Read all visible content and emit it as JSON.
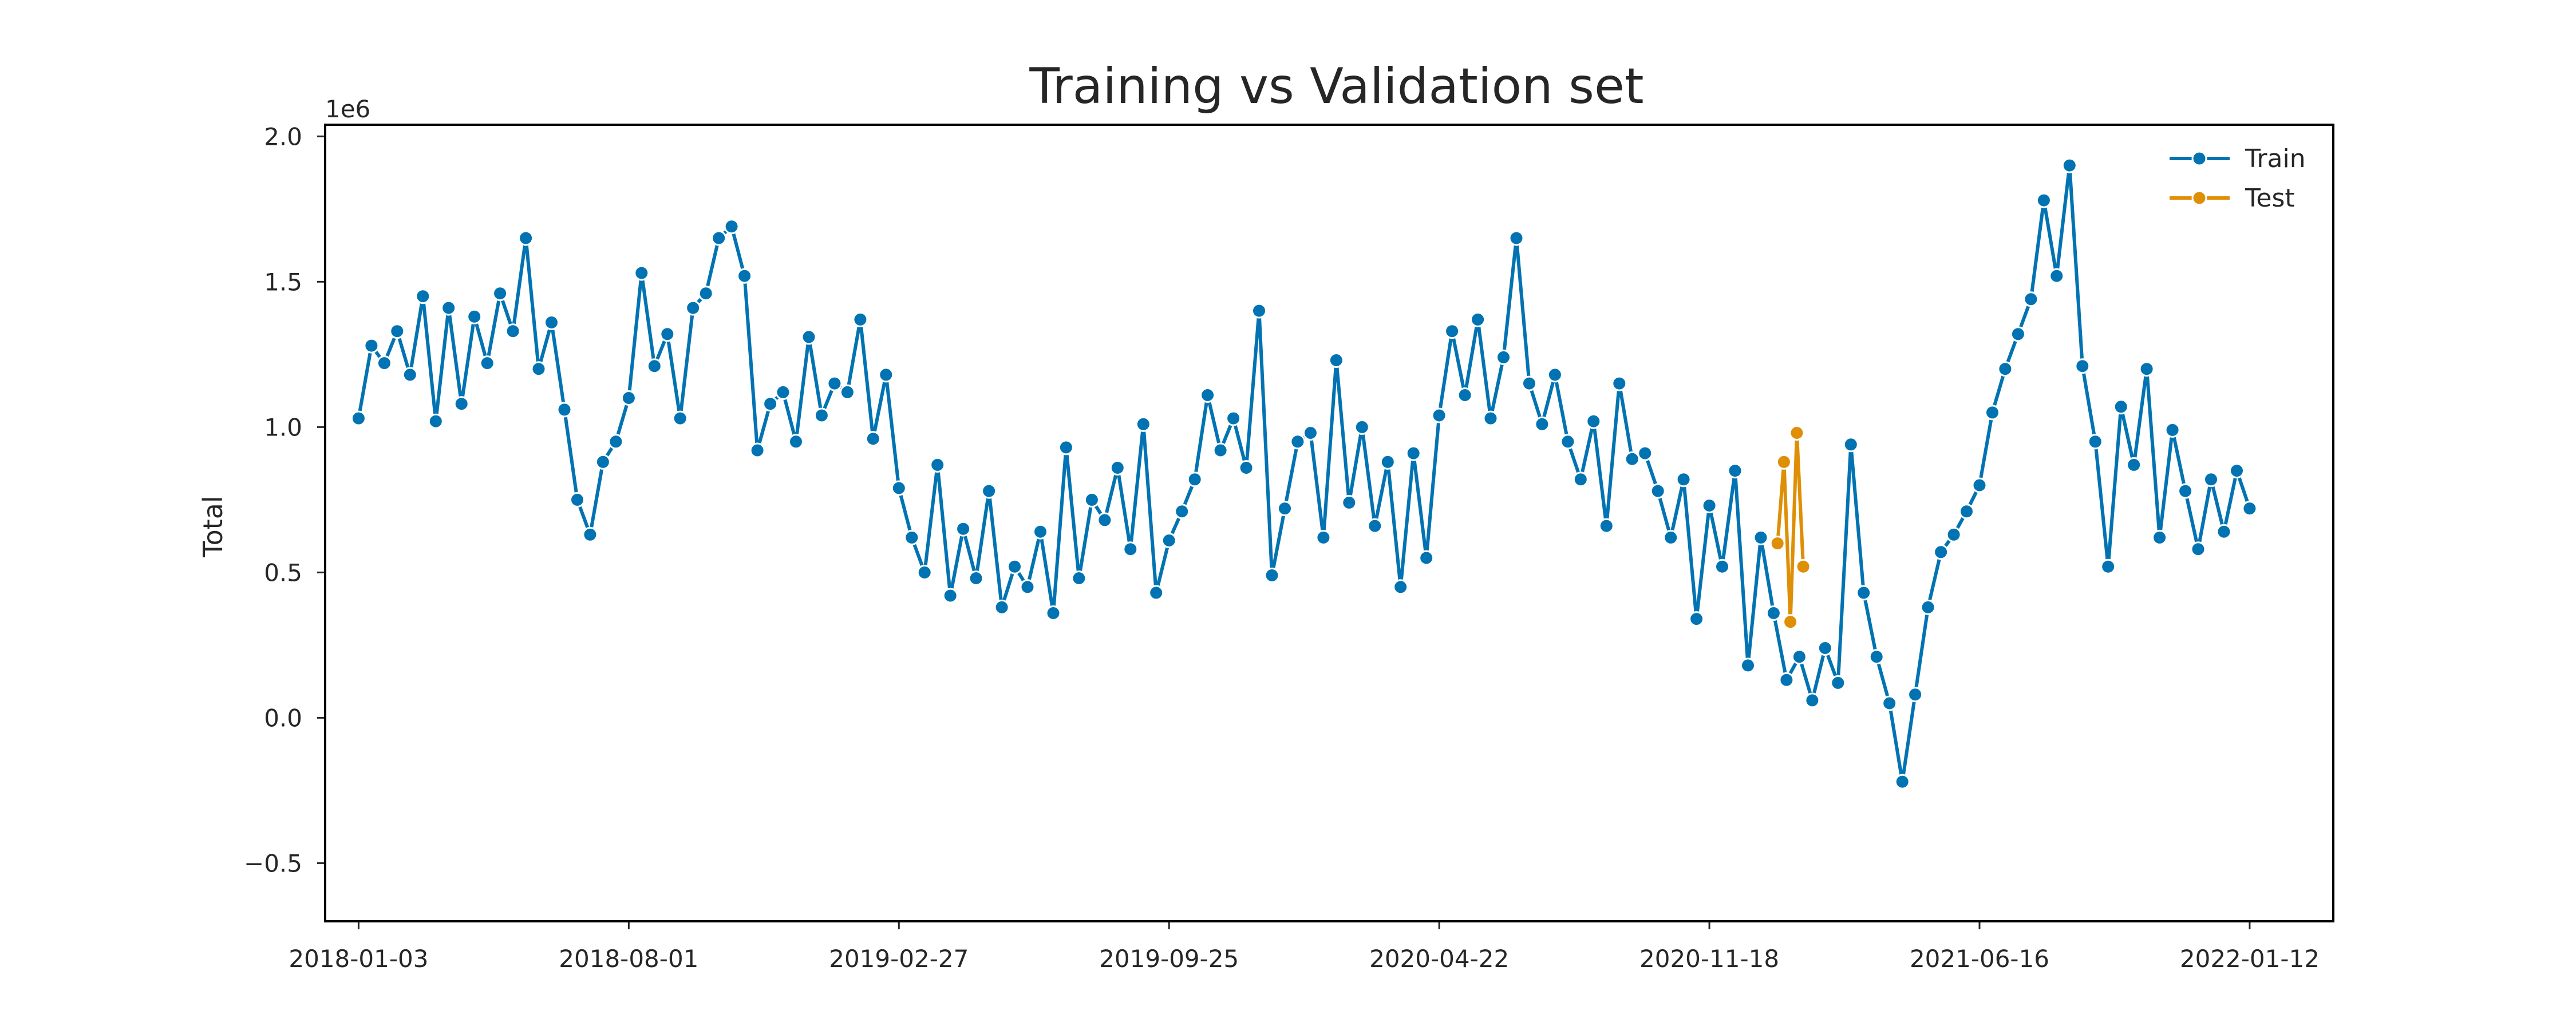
{
  "chart_data": {
    "type": "line",
    "title": "Training vs Validation set",
    "xlabel": "",
    "ylabel": "Total",
    "y_offset_text": "1e6",
    "ylim": [
      -0.7,
      2.04
    ],
    "y_ticks": [
      {
        "value": -0.5,
        "label": "−0.5"
      },
      {
        "value": 0.0,
        "label": "0.0"
      },
      {
        "value": 0.5,
        "label": "0.5"
      },
      {
        "value": 1.0,
        "label": "1.0"
      },
      {
        "value": 1.5,
        "label": "1.5"
      },
      {
        "value": 2.0,
        "label": "2.0"
      }
    ],
    "x_ticks": [
      "2018-01-03",
      "2018-08-01",
      "2019-02-27",
      "2019-09-25",
      "2020-04-22",
      "2020-11-18",
      "2021-06-16",
      "2022-01-12"
    ],
    "xlim": [
      "2017-12-08",
      "2022-03-18"
    ],
    "grid": false,
    "legend_position": "top-right",
    "series": [
      {
        "name": "Train",
        "color": "#0173b2",
        "points": [
          [
            "2018-01-03",
            1.03
          ],
          [
            "2018-01-13",
            1.28
          ],
          [
            "2018-01-23",
            1.22
          ],
          [
            "2018-02-02",
            1.33
          ],
          [
            "2018-02-12",
            1.18
          ],
          [
            "2018-02-22",
            1.45
          ],
          [
            "2018-03-04",
            1.02
          ],
          [
            "2018-03-14",
            1.41
          ],
          [
            "2018-03-24",
            1.08
          ],
          [
            "2018-04-03",
            1.38
          ],
          [
            "2018-04-13",
            1.22
          ],
          [
            "2018-04-23",
            1.46
          ],
          [
            "2018-05-03",
            1.33
          ],
          [
            "2018-05-13",
            1.65
          ],
          [
            "2018-05-23",
            1.2
          ],
          [
            "2018-06-02",
            1.36
          ],
          [
            "2018-06-12",
            1.06
          ],
          [
            "2018-06-22",
            0.75
          ],
          [
            "2018-07-02",
            0.63
          ],
          [
            "2018-07-12",
            0.88
          ],
          [
            "2018-07-22",
            0.95
          ],
          [
            "2018-08-01",
            1.1
          ],
          [
            "2018-08-11",
            1.53
          ],
          [
            "2018-08-21",
            1.21
          ],
          [
            "2018-08-31",
            1.32
          ],
          [
            "2018-09-10",
            1.03
          ],
          [
            "2018-09-20",
            1.41
          ],
          [
            "2018-09-30",
            1.46
          ],
          [
            "2018-10-10",
            1.65
          ],
          [
            "2018-10-20",
            1.69
          ],
          [
            "2018-10-30",
            1.52
          ],
          [
            "2018-11-09",
            0.92
          ],
          [
            "2018-11-19",
            1.08
          ],
          [
            "2018-11-29",
            1.12
          ],
          [
            "2018-12-09",
            0.95
          ],
          [
            "2018-12-19",
            1.31
          ],
          [
            "2018-12-29",
            1.04
          ],
          [
            "2019-01-08",
            1.15
          ],
          [
            "2019-01-18",
            1.12
          ],
          [
            "2019-01-28",
            1.37
          ],
          [
            "2019-02-07",
            0.96
          ],
          [
            "2019-02-17",
            1.18
          ],
          [
            "2019-02-27",
            0.79
          ],
          [
            "2019-03-09",
            0.62
          ],
          [
            "2019-03-19",
            0.5
          ],
          [
            "2019-03-29",
            0.87
          ],
          [
            "2019-04-08",
            0.42
          ],
          [
            "2019-04-18",
            0.65
          ],
          [
            "2019-04-28",
            0.48
          ],
          [
            "2019-05-08",
            0.78
          ],
          [
            "2019-05-18",
            0.38
          ],
          [
            "2019-05-28",
            0.52
          ],
          [
            "2019-06-07",
            0.45
          ],
          [
            "2019-06-17",
            0.64
          ],
          [
            "2019-06-27",
            0.36
          ],
          [
            "2019-07-07",
            0.93
          ],
          [
            "2019-07-17",
            0.48
          ],
          [
            "2019-07-27",
            0.75
          ],
          [
            "2019-08-06",
            0.68
          ],
          [
            "2019-08-16",
            0.86
          ],
          [
            "2019-08-26",
            0.58
          ],
          [
            "2019-09-05",
            1.01
          ],
          [
            "2019-09-15",
            0.43
          ],
          [
            "2019-09-25",
            0.61
          ],
          [
            "2019-10-05",
            0.71
          ],
          [
            "2019-10-15",
            0.82
          ],
          [
            "2019-10-25",
            1.11
          ],
          [
            "2019-11-04",
            0.92
          ],
          [
            "2019-11-14",
            1.03
          ],
          [
            "2019-11-24",
            0.86
          ],
          [
            "2019-12-04",
            1.4
          ],
          [
            "2019-12-14",
            0.49
          ],
          [
            "2019-12-24",
            0.72
          ],
          [
            "2020-01-03",
            0.95
          ],
          [
            "2020-01-13",
            0.98
          ],
          [
            "2020-01-23",
            0.62
          ],
          [
            "2020-02-02",
            1.23
          ],
          [
            "2020-02-12",
            0.74
          ],
          [
            "2020-02-22",
            1.0
          ],
          [
            "2020-03-03",
            0.66
          ],
          [
            "2020-03-13",
            0.88
          ],
          [
            "2020-03-23",
            0.45
          ],
          [
            "2020-04-02",
            0.91
          ],
          [
            "2020-04-12",
            0.55
          ],
          [
            "2020-04-22",
            1.04
          ],
          [
            "2020-05-02",
            1.33
          ],
          [
            "2020-05-12",
            1.11
          ],
          [
            "2020-05-22",
            1.37
          ],
          [
            "2020-06-01",
            1.03
          ],
          [
            "2020-06-11",
            1.24
          ],
          [
            "2020-06-21",
            1.65
          ],
          [
            "2020-07-01",
            1.15
          ],
          [
            "2020-07-11",
            1.01
          ],
          [
            "2020-07-21",
            1.18
          ],
          [
            "2020-07-31",
            0.95
          ],
          [
            "2020-08-10",
            0.82
          ],
          [
            "2020-08-20",
            1.02
          ],
          [
            "2020-08-30",
            0.66
          ],
          [
            "2020-09-09",
            1.15
          ],
          [
            "2020-09-19",
            0.89
          ],
          [
            "2020-09-29",
            0.91
          ],
          [
            "2020-10-09",
            0.78
          ],
          [
            "2020-10-19",
            0.62
          ],
          [
            "2020-10-29",
            0.82
          ],
          [
            "2020-11-08",
            0.34
          ],
          [
            "2020-11-18",
            0.73
          ],
          [
            "2020-11-28",
            0.52
          ],
          [
            "2020-12-08",
            0.85
          ],
          [
            "2020-12-18",
            0.18
          ],
          [
            "2020-12-28",
            0.62
          ],
          [
            "2021-01-07",
            0.36
          ],
          [
            "2021-01-17",
            0.13
          ],
          [
            "2021-01-27",
            0.21
          ],
          [
            "2021-02-06",
            0.06
          ],
          [
            "2021-02-16",
            0.24
          ],
          [
            "2021-02-26",
            0.12
          ],
          [
            "2021-03-08",
            0.94
          ],
          [
            "2021-03-18",
            0.43
          ],
          [
            "2021-03-28",
            0.21
          ],
          [
            "2021-04-07",
            0.05
          ],
          [
            "2021-04-17",
            -0.22
          ],
          [
            "2021-04-27",
            0.08
          ],
          [
            "2021-05-07",
            0.38
          ],
          [
            "2021-05-17",
            0.57
          ],
          [
            "2021-05-27",
            0.63
          ],
          [
            "2021-06-06",
            0.71
          ],
          [
            "2021-06-16",
            0.8
          ],
          [
            "2021-06-26",
            1.05
          ],
          [
            "2021-07-06",
            1.2
          ],
          [
            "2021-07-16",
            1.32
          ],
          [
            "2021-07-26",
            1.44
          ],
          [
            "2021-08-05",
            1.78
          ],
          [
            "2021-08-15",
            1.52
          ],
          [
            "2021-08-25",
            1.9
          ],
          [
            "2021-09-04",
            1.21
          ],
          [
            "2021-09-14",
            0.95
          ],
          [
            "2021-09-24",
            0.52
          ],
          [
            "2021-10-04",
            1.07
          ],
          [
            "2021-10-14",
            0.87
          ],
          [
            "2021-10-24",
            1.2
          ],
          [
            "2021-11-03",
            0.62
          ],
          [
            "2021-11-13",
            0.99
          ],
          [
            "2021-11-23",
            0.78
          ],
          [
            "2021-12-03",
            0.58
          ],
          [
            "2021-12-13",
            0.82
          ],
          [
            "2021-12-23",
            0.64
          ],
          [
            "2022-01-02",
            0.85
          ],
          [
            "2022-01-12",
            0.72
          ]
        ]
      },
      {
        "name": "Test",
        "color": "#de8f05",
        "points": [
          [
            "2021-01-10",
            0.6
          ],
          [
            "2021-01-15",
            0.88
          ],
          [
            "2021-01-20",
            0.33
          ],
          [
            "2021-01-25",
            0.98
          ],
          [
            "2021-01-30",
            0.52
          ]
        ]
      }
    ]
  }
}
